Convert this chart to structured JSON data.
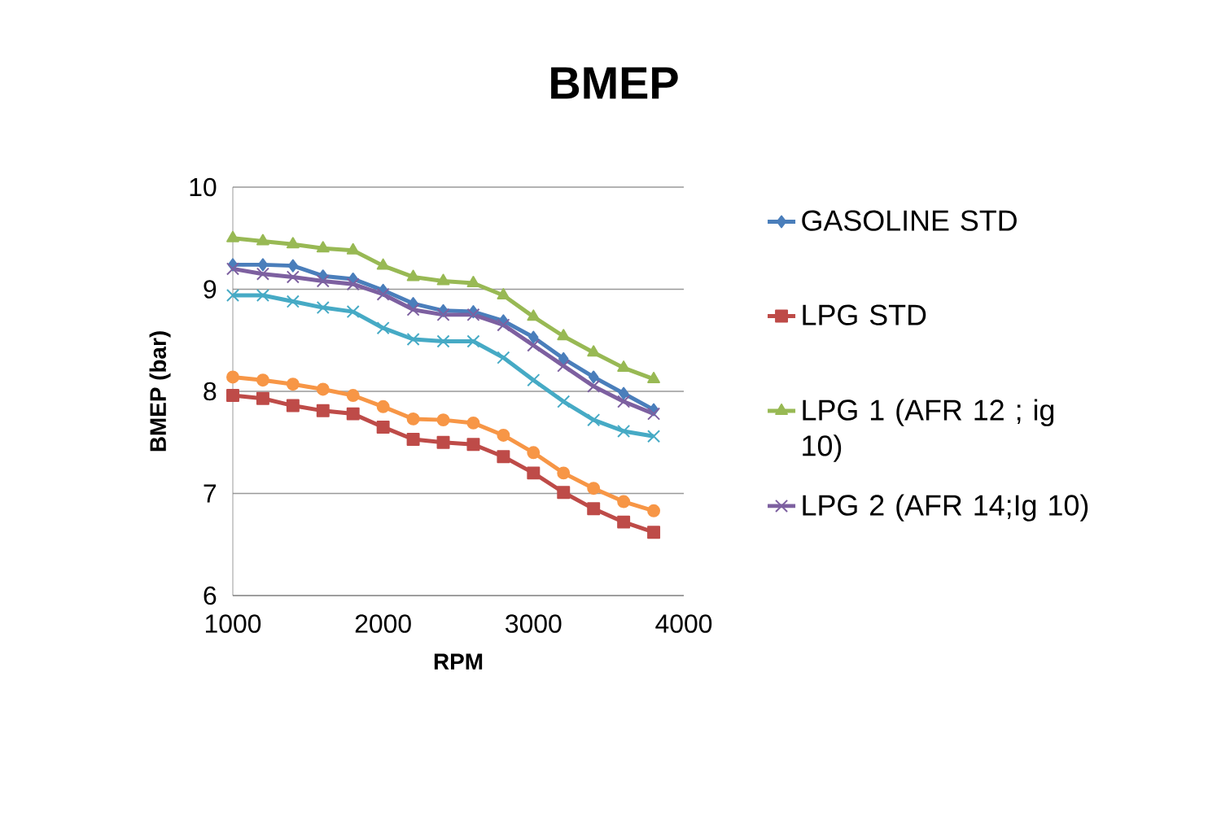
{
  "chart_data": {
    "type": "line",
    "title": "BMEP",
    "xlabel": "RPM",
    "ylabel": "BMEP (bar)",
    "x": [
      1000,
      1200,
      1400,
      1600,
      1800,
      2000,
      2200,
      2400,
      2600,
      2800,
      3000,
      3200,
      3400,
      3600,
      3800
    ],
    "xlim": [
      1000,
      4000
    ],
    "xticks": [
      1000,
      2000,
      3000,
      4000
    ],
    "ylim": [
      6,
      10
    ],
    "yticks": [
      6,
      7,
      8,
      9,
      10
    ],
    "grid": "y",
    "legend": "right",
    "series": [
      {
        "name": "GASOLINE STD",
        "color": "#4a7ebb",
        "marker": "diamond",
        "values": [
          9.24,
          9.24,
          9.23,
          9.13,
          9.1,
          8.99,
          8.86,
          8.79,
          8.78,
          8.69,
          8.53,
          8.32,
          8.14,
          7.98,
          7.82
        ]
      },
      {
        "name": "LPG STD",
        "color": "#be4b48",
        "marker": "square",
        "values": [
          7.96,
          7.93,
          7.86,
          7.81,
          7.78,
          7.65,
          7.53,
          7.5,
          7.48,
          7.36,
          7.2,
          7.01,
          6.85,
          6.72,
          6.62
        ]
      },
      {
        "name": "LPG 1 (AFR 12 ; ig 10)",
        "color": "#98b954",
        "marker": "triangle",
        "values": [
          9.5,
          9.47,
          9.44,
          9.4,
          9.38,
          9.23,
          9.12,
          9.08,
          9.06,
          8.94,
          8.73,
          8.54,
          8.38,
          8.23,
          8.12
        ]
      },
      {
        "name": "LPG 2 (AFR 14;Ig 10)",
        "color": "#7d60a0",
        "marker": "cross",
        "values": [
          9.2,
          9.15,
          9.12,
          9.08,
          9.05,
          8.95,
          8.8,
          8.75,
          8.75,
          8.65,
          8.45,
          8.25,
          8.05,
          7.9,
          7.78
        ]
      },
      {
        "color": "#46aac5",
        "marker": "cross",
        "values": [
          8.94,
          8.94,
          8.88,
          8.82,
          8.78,
          8.62,
          8.51,
          8.49,
          8.49,
          8.33,
          8.11,
          7.9,
          7.72,
          7.61,
          7.56
        ]
      },
      {
        "color": "#f79646",
        "marker": "circle",
        "values": [
          8.14,
          8.11,
          8.07,
          8.02,
          7.96,
          7.85,
          7.73,
          7.72,
          7.69,
          7.57,
          7.4,
          7.2,
          7.05,
          6.92,
          6.83
        ]
      }
    ]
  }
}
